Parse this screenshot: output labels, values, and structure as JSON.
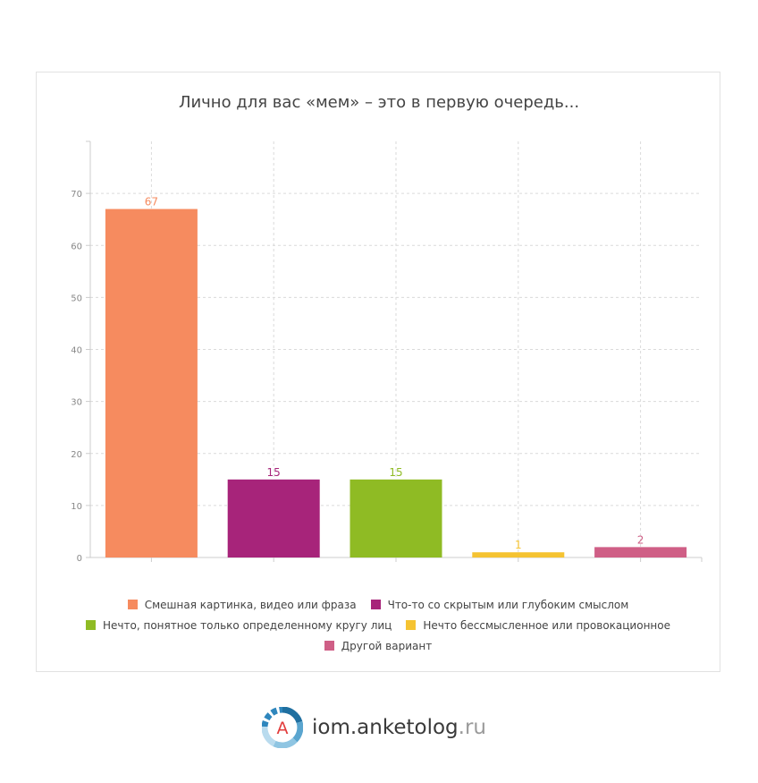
{
  "chart_data": {
    "type": "bar",
    "title": "Лично для вас «мем» – это в первую очередь...",
    "categories": [
      "Смешная картинка, видео или фраза",
      "Что-то со скрытым или глубоким смыслом",
      "Нечто, понятное только определенному кругу лиц",
      "Нечто бессмысленное или провокационное",
      "Другой вариант"
    ],
    "values": [
      67,
      15,
      15,
      1,
      2
    ],
    "colors": [
      "#f68b5f",
      "#a7247a",
      "#8fbb24",
      "#f5c332",
      "#cf5f86"
    ],
    "ylim": [
      0,
      80
    ],
    "yticks": [
      "0",
      "10",
      "20",
      "30",
      "40",
      "50",
      "60",
      "70"
    ],
    "grid": true,
    "legend_position": "bottom"
  },
  "brand": {
    "logo_letter": "A",
    "name": "iom.anketolog",
    "tld": ".ru"
  }
}
